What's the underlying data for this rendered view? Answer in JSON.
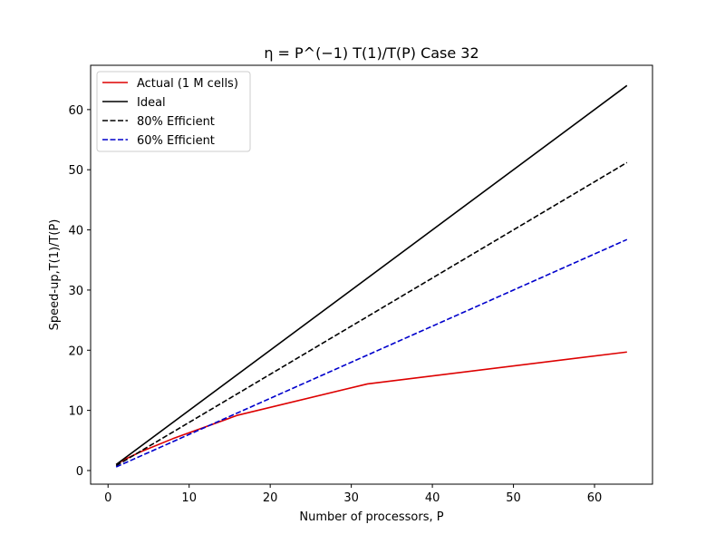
{
  "chart_data": {
    "type": "line",
    "title": "η = P^(−1) T(1)/T(P) Case 32",
    "xlabel": "Number of processors, P",
    "ylabel": "Speed-up,T(1)/T(P)",
    "xlim": [
      -2.15,
      67.15
    ],
    "ylim": [
      -2.265,
      67.365
    ],
    "xticks": [
      0,
      10,
      20,
      30,
      40,
      50,
      60
    ],
    "yticks": [
      0,
      10,
      20,
      30,
      40,
      50,
      60
    ],
    "grid": false,
    "legend_position": "top-left",
    "series": [
      {
        "name": "Actual (1 M cells)",
        "color": "#dd0000",
        "dash": "solid",
        "x": [
          1,
          2,
          4,
          8,
          16,
          32,
          64
        ],
        "y": [
          1.0,
          1.8,
          3.1,
          5.3,
          9.2,
          14.4,
          19.7
        ]
      },
      {
        "name": "Ideal",
        "color": "#000000",
        "dash": "solid",
        "x": [
          1,
          64
        ],
        "y": [
          1,
          64
        ]
      },
      {
        "name": "80% Efficient",
        "color": "#000000",
        "dash": "dashed",
        "x": [
          1,
          64
        ],
        "y": [
          0.8,
          51.2
        ]
      },
      {
        "name": "60% Efficient",
        "color": "#0000cc",
        "dash": "dashed",
        "x": [
          1,
          64
        ],
        "y": [
          0.6,
          38.4
        ]
      }
    ]
  }
}
